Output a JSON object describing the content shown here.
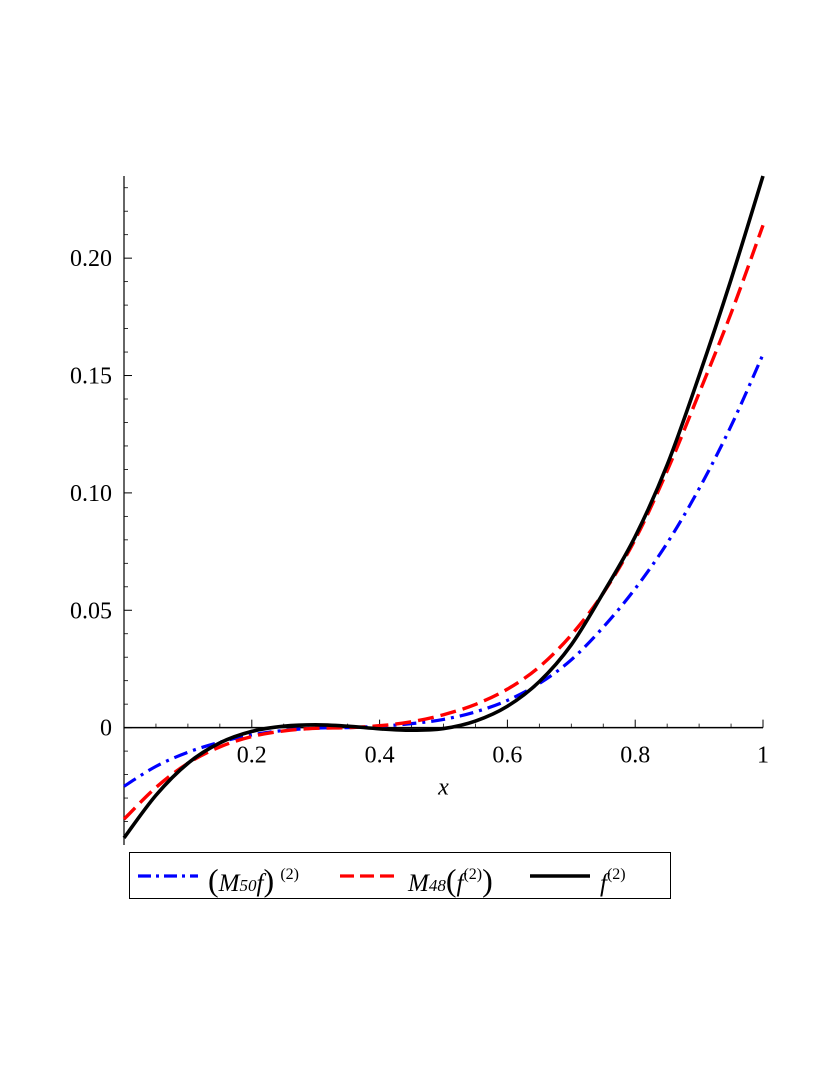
{
  "chart_data": {
    "type": "line",
    "title": "",
    "xlabel": "x",
    "ylabel": "",
    "xlim": [
      0,
      1
    ],
    "ylim": [
      -0.05,
      0.235
    ],
    "x_ticks": [
      0.2,
      0.4,
      0.6,
      0.8,
      1
    ],
    "x_tick_labels": [
      "0.2",
      "0.4",
      "0.6",
      "0.8",
      "1"
    ],
    "y_ticks": [
      0,
      0.05,
      0.1,
      0.15,
      0.2
    ],
    "y_tick_labels": [
      "0",
      "0.05",
      "0.10",
      "0.15",
      "0.20"
    ],
    "grid": false,
    "legend_position": "bottom",
    "series": [
      {
        "name": "(M50f)(2)",
        "color": "#0000ff",
        "style": "dash-dot",
        "x": [
          0,
          0.05,
          0.1,
          0.15,
          0.2,
          0.25,
          0.3,
          0.35,
          0.4,
          0.45,
          0.5,
          0.55,
          0.6,
          0.65,
          0.7,
          0.75,
          0.8,
          0.85,
          0.9,
          0.95,
          1
        ],
        "y": [
          -0.025,
          -0.0165,
          -0.0105,
          -0.0062,
          -0.0031,
          -0.0012,
          -0.0002,
          0.0,
          0.0006,
          0.0017,
          0.0035,
          0.0067,
          0.0116,
          0.0188,
          0.0289,
          0.0428,
          0.0592,
          0.0786,
          0.1018,
          0.1285,
          0.159
        ]
      },
      {
        "name": "M48(f(2))",
        "color": "#ff0000",
        "style": "dash",
        "x": [
          0,
          0.05,
          0.1,
          0.15,
          0.2,
          0.25,
          0.3,
          0.35,
          0.4,
          0.45,
          0.5,
          0.55,
          0.6,
          0.65,
          0.7,
          0.75,
          0.8,
          0.85,
          0.9,
          0.95,
          1
        ],
        "y": [
          -0.039,
          -0.0255,
          -0.0152,
          -0.0082,
          -0.0038,
          -0.0014,
          -0.0003,
          0.0,
          0.0008,
          0.0025,
          0.0055,
          0.0099,
          0.0164,
          0.0259,
          0.0395,
          0.0573,
          0.0802,
          0.1094,
          0.1425,
          0.1765,
          0.214
        ]
      },
      {
        "name": "f(2)",
        "color": "#000000",
        "style": "solid",
        "x": [
          0,
          0.05,
          0.1,
          0.15,
          0.2,
          0.25,
          0.3,
          0.35,
          0.4,
          0.45,
          0.5,
          0.55,
          0.6,
          0.65,
          0.7,
          0.75,
          0.8,
          0.85,
          0.9,
          0.95,
          1
        ],
        "y": [
          -0.047,
          -0.0288,
          -0.0152,
          -0.0065,
          -0.0016,
          0.0006,
          0.0012,
          0.0006,
          -0.0005,
          -0.0011,
          -0.0004,
          0.0028,
          0.0091,
          0.0196,
          0.0353,
          0.0574,
          0.0814,
          0.1119,
          0.1499,
          0.1909,
          0.235
        ]
      }
    ]
  }
}
